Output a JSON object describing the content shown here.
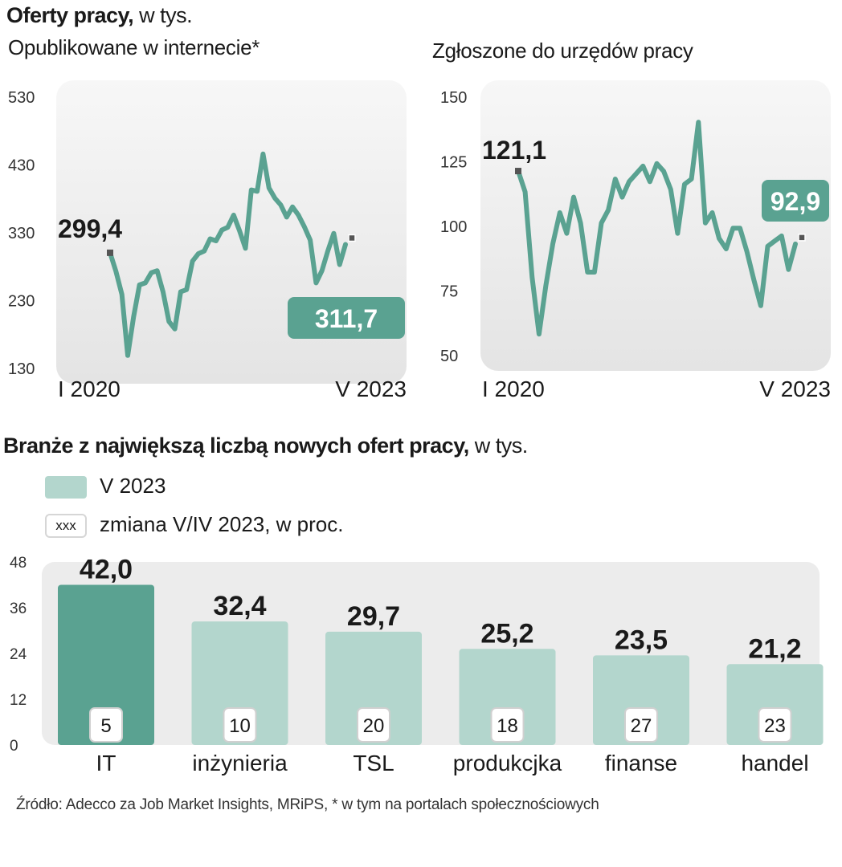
{
  "header": {
    "title_bold": "Oferty pracy,",
    "title_unit": "w tys."
  },
  "chart_data": [
    {
      "type": "line",
      "title": "Opublikowane w internecie*",
      "ylim": [
        130,
        530
      ],
      "yticks": [
        "530",
        "430",
        "330",
        "230",
        "130"
      ],
      "ytick_values": [
        530,
        430,
        330,
        230,
        130
      ],
      "x_start_label": "I 2020",
      "x_end_label": "V 2023",
      "start_value_label": "299,4",
      "end_value_label": "311,7",
      "values": [
        299.4,
        272,
        238,
        148,
        205,
        252,
        255,
        270,
        273,
        242,
        198,
        187,
        242,
        245,
        287,
        298,
        302,
        320,
        317,
        333,
        337,
        355,
        332,
        306,
        392,
        390,
        445,
        395,
        380,
        370,
        352,
        367,
        355,
        338,
        318,
        255,
        273,
        302,
        328,
        282,
        311.7
      ],
      "series_color": "#5aa291"
    },
    {
      "type": "line",
      "title": "Zgłoszone do urzędów pracy",
      "ylim": [
        50,
        150
      ],
      "yticks": [
        "150",
        "125",
        "100",
        "75",
        "50"
      ],
      "ytick_values": [
        150,
        125,
        100,
        75,
        50
      ],
      "x_start_label": "I 2020",
      "x_end_label": "V 2023",
      "start_value_label": "121,1",
      "end_value_label": "92,9",
      "values": [
        121.1,
        113,
        80,
        58,
        77,
        93,
        105,
        97,
        111,
        101,
        82,
        82,
        101,
        106,
        118,
        111,
        117,
        120,
        123,
        117,
        124,
        121,
        114,
        97,
        116,
        118,
        140,
        101,
        105,
        95,
        91,
        99,
        99,
        90,
        79,
        69,
        92,
        94,
        96,
        83,
        92.9
      ],
      "series_color": "#5aa291"
    },
    {
      "type": "bar",
      "title": "Branże z największą liczbą  nowych ofert pracy,",
      "title_unit": "w tys.",
      "ylim": [
        0,
        48
      ],
      "yticks": [
        "48",
        "36",
        "24",
        "12",
        "0"
      ],
      "ytick_values": [
        48,
        36,
        24,
        12,
        0
      ],
      "categories": [
        "IT",
        "inżynieria",
        "TSL",
        "produkcjka",
        "finanse",
        "handel"
      ],
      "values": [
        42.0,
        32.4,
        29.7,
        25.2,
        23.5,
        21.2
      ],
      "value_labels": [
        "42,0",
        "32,4",
        "29,7",
        "25,2",
        "23,5",
        "21,2"
      ],
      "change_labels": [
        "5",
        "10",
        "20",
        "18",
        "27",
        "23"
      ],
      "legend": [
        {
          "label": "V 2023",
          "color": "#b3d6cd"
        },
        {
          "label": "zmiana V/IV 2023, w proc.",
          "box_text": "xxx"
        }
      ],
      "highlight_color": "#5aa291",
      "bar_color": "#b3d6cd"
    }
  ],
  "footer": {
    "source": "Źródło: Adecco za Job Market Insights, MRiPS, * w tym na portalach społecznościowych"
  }
}
